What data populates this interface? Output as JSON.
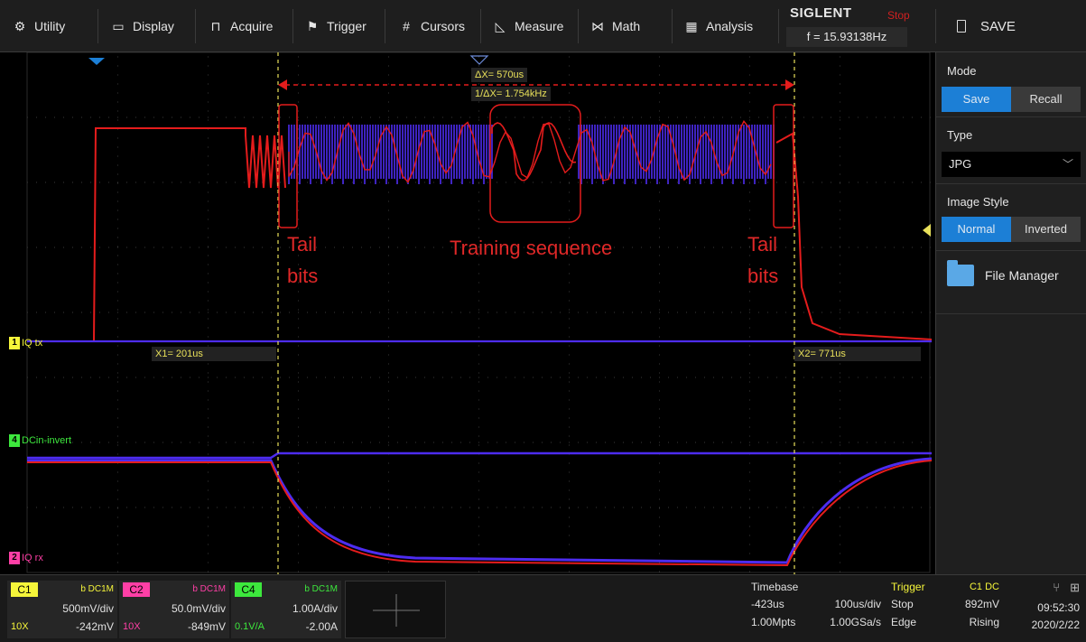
{
  "menu": {
    "items": [
      {
        "label": "Utility",
        "icon": "gear-icon"
      },
      {
        "label": "Display",
        "icon": "monitor-icon"
      },
      {
        "label": "Acquire",
        "icon": "acquire-icon"
      },
      {
        "label": "Trigger",
        "icon": "flag-icon"
      },
      {
        "label": "Cursors",
        "icon": "hash-icon"
      },
      {
        "label": "Measure",
        "icon": "measure-icon"
      },
      {
        "label": "Math",
        "icon": "math-icon"
      },
      {
        "label": "Analysis",
        "icon": "analysis-icon"
      }
    ],
    "brand": "SIGLENT",
    "run_state": "Stop",
    "frequency": "f = 15.93138Hz",
    "save_label": "SAVE"
  },
  "screen": {
    "cursor_delta": "ΔX= 570us",
    "cursor_inv": "1/ΔX= 1.754kHz",
    "x1": "X1= 201us",
    "x2": "X2= 771us",
    "ch1_label": "IQ tx",
    "ch4_label": "DCin-invert",
    "ch2_label": "IQ rx",
    "annotations": {
      "tail_left_1": "Tail",
      "tail_left_2": "bits",
      "training": "Training sequence",
      "tail_right_1": "Tail",
      "tail_right_2": "bits"
    }
  },
  "panel": {
    "mode_title": "Mode",
    "mode_options": [
      "Save",
      "Recall"
    ],
    "mode_selected": "Save",
    "type_title": "Type",
    "type_value": "JPG",
    "style_title": "Image Style",
    "style_options": [
      "Normal",
      "Inverted"
    ],
    "style_selected": "Normal",
    "file_manager": "File Manager"
  },
  "channels": [
    {
      "name": "C1",
      "coupling": "b DC1M",
      "vdiv": "500mV/div",
      "probe": "10X",
      "offset": "-242mV",
      "color": "#f5f53a"
    },
    {
      "name": "C2",
      "coupling": "b DC1M",
      "vdiv": "50.0mV/div",
      "probe": "10X",
      "offset": "-849mV",
      "color": "#ff3fa6"
    },
    {
      "name": "C4",
      "coupling": "b DC1M",
      "vdiv": "1.00A/div",
      "probe": "0.1V/A",
      "offset": "-2.00A",
      "color": "#3de83d"
    }
  ],
  "timebase": {
    "title": "Timebase",
    "delay": "-423us",
    "tdiv": "100us/div",
    "mpts": "1.00Mpts",
    "srate": "1.00GSa/s"
  },
  "trigger": {
    "title": "Trigger",
    "source": "C1 DC",
    "state": "Stop",
    "level": "892mV",
    "type": "Edge",
    "slope": "Rising"
  },
  "clock": {
    "time": "09:52:30",
    "date": "2020/2/22"
  },
  "colors": {
    "trace_blue": "#4d2cf0",
    "trace_red": "#e41c1c",
    "cursor": "#e8e05a",
    "accent": "#1c7fd6"
  }
}
